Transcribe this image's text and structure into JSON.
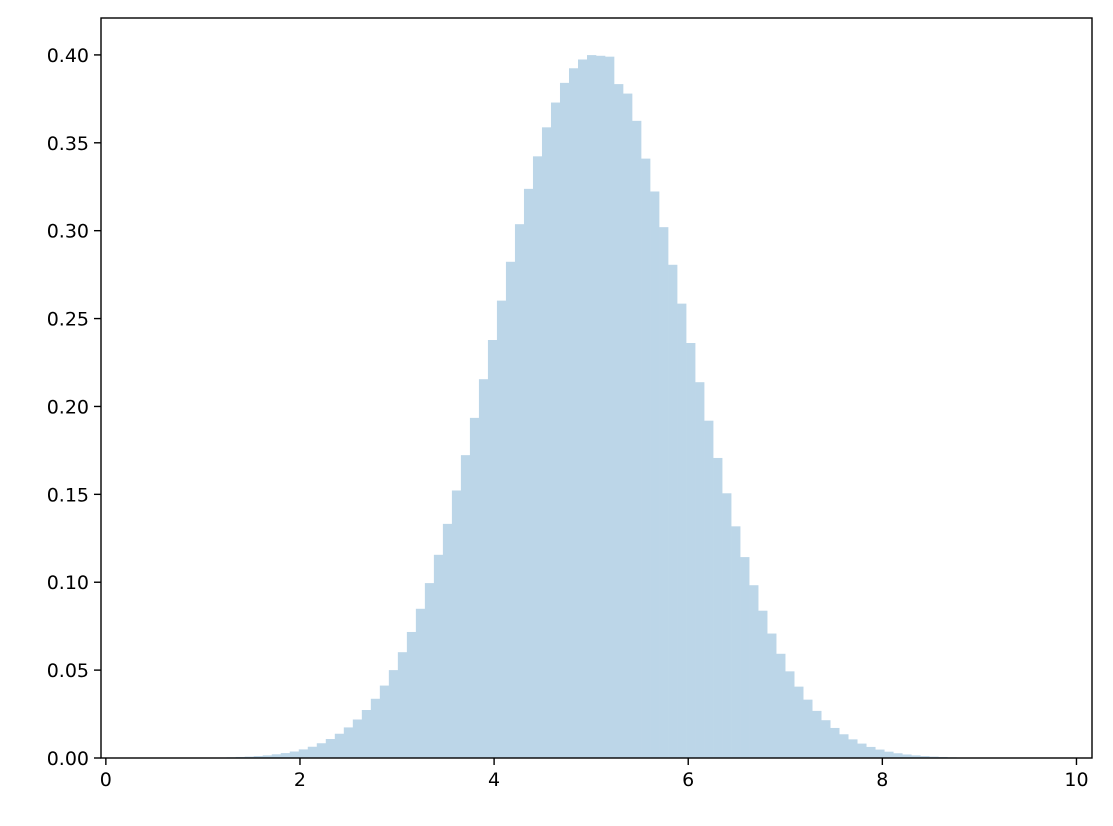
{
  "chart_data": {
    "type": "bar",
    "subtype": "histogram",
    "title": "",
    "xlabel": "",
    "ylabel": "",
    "xlim": [
      -0.05,
      10.16
    ],
    "ylim": [
      0,
      0.421
    ],
    "grid": false,
    "bar_color": "#bcd6e8",
    "bin_start": 0.41,
    "bin_width": 0.0928,
    "x_ticks": [
      "0",
      "2",
      "4",
      "6",
      "8",
      "10"
    ],
    "x_tick_values": [
      0,
      2,
      4,
      6,
      8,
      10
    ],
    "y_ticks": [
      "0.00",
      "0.05",
      "0.10",
      "0.15",
      "0.20",
      "0.25",
      "0.30",
      "0.35",
      "0.40"
    ],
    "y_tick_values": [
      0,
      0.05,
      0.1,
      0.15,
      0.2,
      0.25,
      0.3,
      0.35,
      0.4
    ],
    "values": [
      0,
      0,
      0,
      0,
      0,
      0.0001,
      0.0001,
      0.0002,
      0.0003,
      0.0004,
      0.0006,
      0.0008,
      0.0011,
      0.0015,
      0.0021,
      0.0028,
      0.0037,
      0.0049,
      0.0064,
      0.0084,
      0.0108,
      0.0138,
      0.0174,
      0.0219,
      0.0273,
      0.0337,
      0.0412,
      0.05,
      0.0602,
      0.0717,
      0.0849,
      0.0995,
      0.1156,
      0.1332,
      0.1522,
      0.1723,
      0.1935,
      0.2155,
      0.2378,
      0.2602,
      0.2823,
      0.3037,
      0.3238,
      0.3423,
      0.3588,
      0.3729,
      0.3841,
      0.3924,
      0.3974,
      0.3999,
      0.3995,
      0.399,
      0.3834,
      0.378,
      0.3625,
      0.341,
      0.3223,
      0.302,
      0.2806,
      0.2585,
      0.2361,
      0.2138,
      0.1919,
      0.1707,
      0.1506,
      0.1318,
      0.1143,
      0.0983,
      0.0838,
      0.0708,
      0.0593,
      0.0493,
      0.0406,
      0.0332,
      0.0268,
      0.0215,
      0.0171,
      0.0135,
      0.0106,
      0.0082,
      0.0063,
      0.0048,
      0.0036,
      0.0027,
      0.002,
      0.0015,
      0.0011,
      0.0008,
      0.0006,
      0.0004,
      0.0003,
      0.0002,
      0.0001,
      0.0001,
      0,
      0,
      0,
      0,
      0,
      0
    ]
  }
}
